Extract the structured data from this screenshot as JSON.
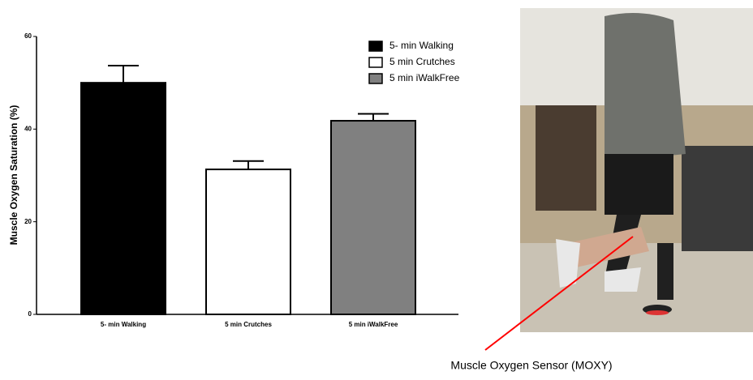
{
  "chart_data": {
    "type": "bar",
    "ylabel": "Muscle Oxygen Saturation (%)",
    "categories": [
      "5- min Walking",
      "5 min Crutches",
      "5 min iWalkFree"
    ],
    "values": [
      50,
      31.3,
      41.8
    ],
    "errors": [
      3.7,
      1.8,
      1.5
    ],
    "colors": [
      "#000000",
      "#ffffff",
      "#808080"
    ],
    "ylim": [
      0,
      60
    ],
    "yticks": [
      0,
      20,
      40,
      60
    ],
    "legend": "upper right",
    "annotation": "Muscle Oxygen Sensor (MOXY)"
  }
}
